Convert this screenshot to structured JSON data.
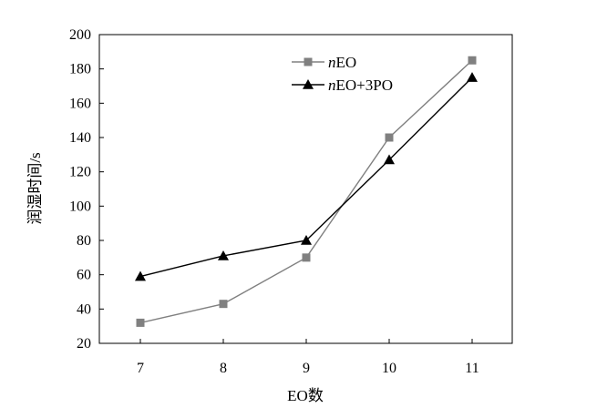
{
  "chart_data": {
    "type": "line",
    "xlabel": "EO数",
    "ylabel": "润湿时间/s",
    "categories": [
      "7",
      "8",
      "9",
      "10",
      "11"
    ],
    "ylim": [
      20,
      200
    ],
    "yticks": [
      20,
      40,
      60,
      80,
      100,
      120,
      140,
      160,
      180,
      200
    ],
    "grid": false,
    "legend_position": "top-right",
    "series": [
      {
        "name_prefix": "n",
        "name_suffix": "EO",
        "marker": "square",
        "color": "#808080",
        "values": [
          32,
          43,
          70,
          140,
          185
        ]
      },
      {
        "name_prefix": "n",
        "name_suffix": "EO+3PO",
        "marker": "triangle",
        "color": "#000000",
        "values": [
          59,
          71,
          80,
          127,
          175
        ]
      }
    ]
  }
}
